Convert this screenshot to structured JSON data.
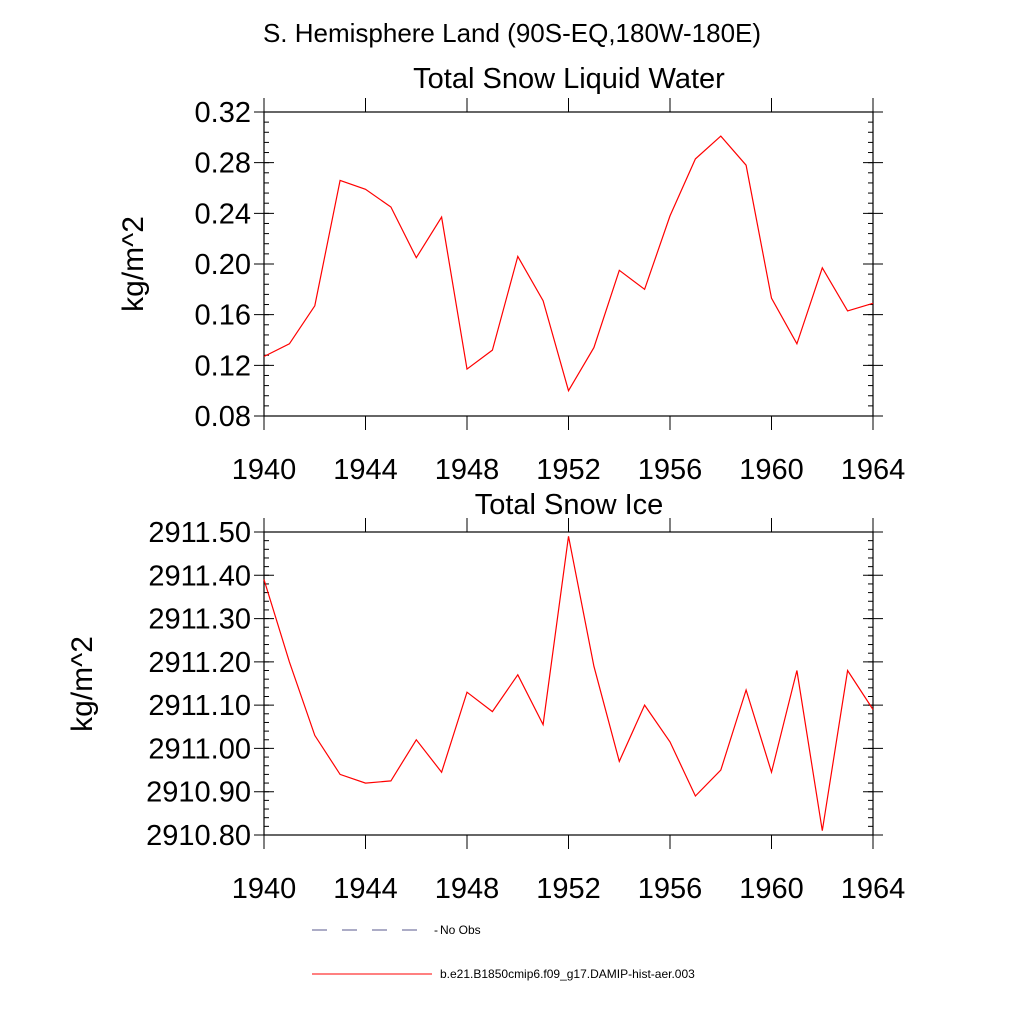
{
  "suptitle": "S. Hemisphere Land (90S-EQ,180W-180E)",
  "colors": {
    "series": "#ff0000",
    "obs": "#5a5a8c",
    "axis": "#000000"
  },
  "legend": [
    {
      "label": "No Obs",
      "style": "dashed",
      "color": "#5a5a8c"
    },
    {
      "label": "b.e21.B1850cmip6.f09_g17.DAMIP-hist-aer.003",
      "style": "solid",
      "color": "#ff0000"
    }
  ],
  "chart_data": [
    {
      "type": "line",
      "title": "Total Snow Liquid Water",
      "ylabel": "kg/m^2",
      "xlabel": "",
      "xlim": [
        1940,
        1964
      ],
      "ylim": [
        0.08,
        0.32
      ],
      "xticks": [
        1940,
        1944,
        1948,
        1952,
        1956,
        1960,
        1964
      ],
      "yticks": [
        0.08,
        0.12,
        0.16,
        0.2,
        0.24,
        0.28,
        0.32
      ],
      "ytick_labels": [
        "0.08",
        "0.12",
        "0.16",
        "0.20",
        "0.24",
        "0.28",
        "0.32"
      ],
      "x": [
        1940,
        1941,
        1942,
        1943,
        1944,
        1945,
        1946,
        1947,
        1948,
        1949,
        1950,
        1951,
        1952,
        1953,
        1954,
        1955,
        1956,
        1957,
        1958,
        1959,
        1960,
        1961,
        1962,
        1963,
        1964
      ],
      "series": [
        {
          "name": "b.e21.B1850cmip6.f09_g17.DAMIP-hist-aer.003",
          "values": [
            0.127,
            0.137,
            0.167,
            0.266,
            0.259,
            0.245,
            0.205,
            0.237,
            0.117,
            0.132,
            0.206,
            0.171,
            0.1,
            0.134,
            0.195,
            0.18,
            0.238,
            0.283,
            0.301,
            0.278,
            0.173,
            0.137,
            0.197,
            0.163,
            0.169
          ]
        }
      ]
    },
    {
      "type": "line",
      "title": "Total Snow Ice",
      "ylabel": "kg/m^2",
      "xlabel": "",
      "xlim": [
        1940,
        1964
      ],
      "ylim": [
        2910.8,
        2911.5
      ],
      "xticks": [
        1940,
        1944,
        1948,
        1952,
        1956,
        1960,
        1964
      ],
      "yticks": [
        2910.8,
        2910.9,
        2911.0,
        2911.1,
        2911.2,
        2911.3,
        2911.4,
        2911.5
      ],
      "ytick_labels": [
        "2910.80",
        "2910.90",
        "2911.00",
        "2911.10",
        "2911.20",
        "2911.30",
        "2911.40",
        "2911.50"
      ],
      "x": [
        1940,
        1941,
        1942,
        1943,
        1944,
        1945,
        1946,
        1947,
        1948,
        1949,
        1950,
        1951,
        1952,
        1953,
        1954,
        1955,
        1956,
        1957,
        1958,
        1959,
        1960,
        1961,
        1962,
        1963,
        1964
      ],
      "series": [
        {
          "name": "b.e21.B1850cmip6.f09_g17.DAMIP-hist-aer.003",
          "values": [
            2911.39,
            2911.2,
            2911.03,
            2910.94,
            2910.92,
            2910.925,
            2911.02,
            2910.945,
            2911.13,
            2911.085,
            2911.17,
            2911.055,
            2911.49,
            2911.19,
            2910.97,
            2911.1,
            2911.015,
            2910.89,
            2910.95,
            2911.135,
            2910.945,
            2911.18,
            2910.81,
            2911.18,
            2911.09
          ]
        }
      ]
    }
  ]
}
